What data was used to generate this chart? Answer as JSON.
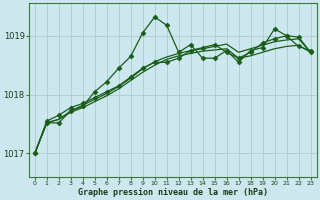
{
  "title": "Graphe pression niveau de la mer (hPa)",
  "bg_color": "#cce8ee",
  "grid_color": "#aacccc",
  "line_color": "#1a5c1a",
  "marker_color": "#1a5c1a",
  "xlim": [
    -0.5,
    23.5
  ],
  "ylim": [
    1016.6,
    1019.55
  ],
  "yticks": [
    1017,
    1018,
    1019
  ],
  "xticks": [
    0,
    1,
    2,
    3,
    4,
    5,
    6,
    7,
    8,
    9,
    10,
    11,
    12,
    13,
    14,
    15,
    16,
    17,
    18,
    19,
    20,
    21,
    22,
    23
  ],
  "series1_x": [
    0,
    1,
    2,
    3,
    4,
    5,
    6,
    7,
    8,
    9,
    10,
    11,
    12,
    13,
    14,
    15,
    16,
    17,
    18,
    19,
    20,
    21,
    22,
    23
  ],
  "series1_y": [
    1017.0,
    1017.52,
    1017.52,
    1017.73,
    1017.8,
    1018.05,
    1018.22,
    1018.45,
    1018.65,
    1019.05,
    1019.32,
    1019.18,
    1018.72,
    1018.85,
    1018.62,
    1018.62,
    1018.75,
    1018.55,
    1018.75,
    1018.8,
    1019.12,
    1019.0,
    1018.82,
    1018.75
  ],
  "series2_x": [
    0,
    1,
    2,
    3,
    4,
    5,
    6,
    7,
    8,
    9,
    10,
    11,
    12,
    13,
    14,
    15,
    16,
    17,
    18,
    19,
    20,
    21,
    22,
    23
  ],
  "series2_y": [
    1017.0,
    1017.55,
    1017.65,
    1017.78,
    1017.85,
    1017.95,
    1018.05,
    1018.15,
    1018.3,
    1018.45,
    1018.55,
    1018.55,
    1018.62,
    1018.75,
    1018.8,
    1018.85,
    1018.72,
    1018.62,
    1018.72,
    1018.88,
    1018.95,
    1019.0,
    1018.98,
    1018.72
  ],
  "series3_x": [
    0,
    1,
    2,
    3,
    4,
    5,
    6,
    7,
    8,
    9,
    10,
    11,
    12,
    13,
    14,
    15,
    16,
    17,
    18,
    19,
    20,
    21,
    22,
    23
  ],
  "series3_y": [
    1017.0,
    1017.52,
    1017.58,
    1017.72,
    1017.82,
    1017.92,
    1018.02,
    1018.14,
    1018.28,
    1018.44,
    1018.56,
    1018.64,
    1018.7,
    1018.75,
    1018.78,
    1018.82,
    1018.86,
    1018.72,
    1018.78,
    1018.84,
    1018.9,
    1018.93,
    1018.95,
    1018.72
  ],
  "series4_x": [
    0,
    1,
    2,
    3,
    4,
    5,
    6,
    7,
    8,
    9,
    10,
    11,
    12,
    13,
    14,
    15,
    16,
    17,
    18,
    19,
    20,
    21,
    22,
    23
  ],
  "series4_y": [
    1017.0,
    1017.52,
    1017.58,
    1017.7,
    1017.78,
    1017.88,
    1017.98,
    1018.1,
    1018.24,
    1018.38,
    1018.5,
    1018.6,
    1018.66,
    1018.7,
    1018.74,
    1018.76,
    1018.78,
    1018.62,
    1018.66,
    1018.72,
    1018.78,
    1018.82,
    1018.84,
    1018.72
  ]
}
